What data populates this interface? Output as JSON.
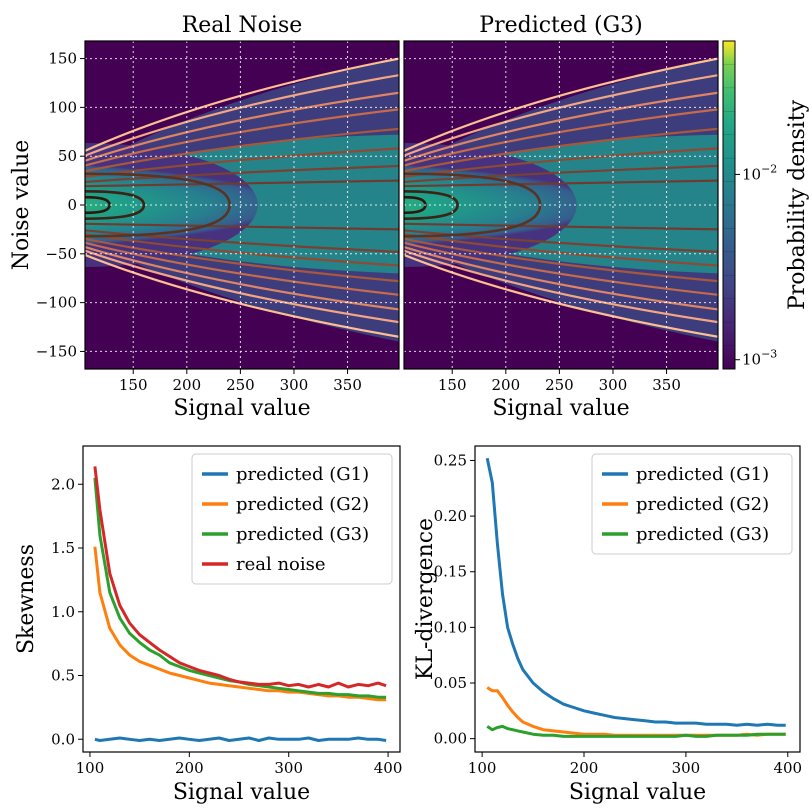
{
  "chart_data": [
    {
      "type": "heatmap",
      "title": "Real Noise",
      "xlabel": "Signal value",
      "ylabel": "Noise value",
      "xlim": [
        105,
        398
      ],
      "ylim": [
        -168,
        168
      ],
      "xticks": [
        150,
        200,
        250,
        300,
        350
      ],
      "yticks": [
        -150,
        -100,
        -50,
        0,
        50,
        100,
        150
      ],
      "grid": true,
      "contour_outer_ends_y_at_x398": [
        150,
        133,
        115,
        98,
        78,
        58,
        40,
        25,
        -25,
        -48,
        -62,
        -78,
        -92,
        -107,
        -120,
        -135
      ],
      "contour_inner_x_extent": [
        128,
        160,
        240
      ]
    },
    {
      "type": "heatmap",
      "title": "Predicted (G3)",
      "xlabel": "Signal value",
      "ylabel": "",
      "xlim": [
        105,
        398
      ],
      "ylim": [
        -168,
        168
      ],
      "xticks": [
        150,
        200,
        250,
        300,
        350
      ],
      "yticks": [],
      "grid": true,
      "colorbar": {
        "label": "Probability density",
        "scale": "log",
        "ticks": [
          "10^-2",
          "10^-3"
        ],
        "tick_values": [
          0.01,
          0.001
        ]
      },
      "contour_outer_ends_y_at_x398": [
        150,
        133,
        115,
        98,
        78,
        58,
        40,
        25,
        -25,
        -48,
        -62,
        -78,
        -92,
        -107,
        -120,
        -135
      ],
      "contour_inner_x_extent": [
        125,
        155,
        232
      ]
    },
    {
      "type": "line",
      "xlabel": "Signal value",
      "ylabel": "Skewness",
      "xlim": [
        93,
        412
      ],
      "ylim": [
        -0.1,
        2.3
      ],
      "xticks": [
        100,
        200,
        300,
        400
      ],
      "yticks": [
        0.0,
        0.5,
        1.0,
        1.5,
        2.0
      ],
      "legend": "top-right",
      "series": [
        {
          "name": "predicted (G1)",
          "color": "#1f77b4",
          "x": [
            105,
            110,
            120,
            130,
            140,
            150,
            160,
            170,
            180,
            190,
            200,
            210,
            220,
            230,
            240,
            250,
            260,
            270,
            280,
            290,
            300,
            310,
            320,
            330,
            340,
            350,
            360,
            370,
            380,
            390,
            398
          ],
          "y": [
            0.0,
            -0.01,
            0.0,
            0.01,
            0.0,
            -0.01,
            0.0,
            -0.01,
            0.0,
            0.01,
            0.0,
            -0.01,
            0.0,
            0.01,
            -0.01,
            0.0,
            0.01,
            -0.01,
            0.01,
            0.0,
            0.0,
            0.0,
            0.01,
            -0.01,
            0.0,
            0.0,
            0.0,
            0.01,
            0.0,
            0.0,
            -0.01
          ]
        },
        {
          "name": "predicted (G2)",
          "color": "#ff7f0e",
          "x": [
            105,
            110,
            120,
            130,
            140,
            150,
            160,
            170,
            180,
            190,
            200,
            210,
            220,
            230,
            240,
            250,
            260,
            270,
            280,
            290,
            300,
            310,
            320,
            330,
            340,
            350,
            360,
            370,
            380,
            390,
            398
          ],
          "y": [
            1.51,
            1.15,
            0.87,
            0.74,
            0.66,
            0.61,
            0.58,
            0.55,
            0.52,
            0.5,
            0.48,
            0.46,
            0.44,
            0.43,
            0.42,
            0.41,
            0.4,
            0.39,
            0.38,
            0.38,
            0.37,
            0.37,
            0.36,
            0.35,
            0.34,
            0.34,
            0.33,
            0.33,
            0.32,
            0.31,
            0.31
          ]
        },
        {
          "name": "predicted (G3)",
          "color": "#2ca02c",
          "x": [
            105,
            110,
            120,
            130,
            140,
            150,
            160,
            170,
            180,
            190,
            200,
            210,
            220,
            230,
            240,
            250,
            260,
            270,
            280,
            290,
            300,
            310,
            320,
            330,
            340,
            350,
            360,
            370,
            380,
            390,
            398
          ],
          "y": [
            2.05,
            1.6,
            1.15,
            0.95,
            0.83,
            0.76,
            0.7,
            0.66,
            0.6,
            0.57,
            0.54,
            0.52,
            0.5,
            0.48,
            0.46,
            0.45,
            0.43,
            0.42,
            0.41,
            0.4,
            0.39,
            0.38,
            0.37,
            0.36,
            0.36,
            0.35,
            0.35,
            0.34,
            0.34,
            0.33,
            0.33
          ]
        },
        {
          "name": "real noise",
          "color": "#d62728",
          "x": [
            105,
            110,
            120,
            130,
            140,
            150,
            160,
            170,
            180,
            190,
            200,
            210,
            220,
            230,
            240,
            250,
            260,
            270,
            280,
            290,
            300,
            310,
            320,
            330,
            340,
            350,
            360,
            370,
            380,
            390,
            398
          ],
          "y": [
            2.14,
            1.8,
            1.3,
            1.05,
            0.91,
            0.82,
            0.76,
            0.7,
            0.65,
            0.6,
            0.57,
            0.54,
            0.52,
            0.5,
            0.47,
            0.45,
            0.44,
            0.43,
            0.43,
            0.44,
            0.42,
            0.43,
            0.41,
            0.43,
            0.41,
            0.44,
            0.41,
            0.43,
            0.42,
            0.44,
            0.42
          ]
        }
      ]
    },
    {
      "type": "line",
      "xlabel": "Signal value",
      "ylabel": "KL-divergence",
      "xlim": [
        93,
        412
      ],
      "ylim": [
        -0.012,
        0.263
      ],
      "xticks": [
        100,
        200,
        300,
        400
      ],
      "yticks": [
        0.0,
        0.05,
        0.1,
        0.15,
        0.2,
        0.25
      ],
      "legend": "top-right",
      "series": [
        {
          "name": "predicted (G1)",
          "color": "#1f77b4",
          "x": [
            105,
            110,
            115,
            120,
            125,
            130,
            135,
            140,
            150,
            160,
            170,
            180,
            190,
            200,
            210,
            220,
            230,
            240,
            250,
            260,
            270,
            280,
            290,
            300,
            310,
            320,
            330,
            340,
            350,
            360,
            370,
            380,
            390,
            398
          ],
          "y": [
            0.252,
            0.23,
            0.175,
            0.13,
            0.1,
            0.085,
            0.072,
            0.062,
            0.05,
            0.042,
            0.036,
            0.031,
            0.028,
            0.025,
            0.023,
            0.021,
            0.019,
            0.018,
            0.017,
            0.016,
            0.015,
            0.015,
            0.014,
            0.014,
            0.014,
            0.013,
            0.013,
            0.013,
            0.012,
            0.013,
            0.012,
            0.013,
            0.012,
            0.012
          ]
        },
        {
          "name": "predicted (G2)",
          "color": "#ff7f0e",
          "x": [
            105,
            110,
            115,
            120,
            125,
            130,
            135,
            140,
            150,
            160,
            170,
            180,
            190,
            200,
            210,
            220,
            230,
            240,
            250,
            260,
            270,
            280,
            290,
            300,
            310,
            320,
            330,
            340,
            350,
            360,
            370,
            380,
            390,
            398
          ],
          "y": [
            0.046,
            0.043,
            0.043,
            0.037,
            0.03,
            0.024,
            0.019,
            0.015,
            0.011,
            0.008,
            0.007,
            0.006,
            0.005,
            0.004,
            0.004,
            0.004,
            0.003,
            0.003,
            0.003,
            0.003,
            0.003,
            0.003,
            0.003,
            0.003,
            0.003,
            0.003,
            0.003,
            0.003,
            0.003,
            0.004,
            0.003,
            0.004,
            0.004,
            0.004
          ]
        },
        {
          "name": "predicted (G3)",
          "color": "#2ca02c",
          "x": [
            105,
            110,
            115,
            120,
            125,
            130,
            135,
            140,
            150,
            160,
            170,
            180,
            190,
            200,
            210,
            220,
            230,
            240,
            250,
            260,
            270,
            280,
            290,
            300,
            310,
            320,
            330,
            340,
            350,
            360,
            370,
            380,
            390,
            398
          ],
          "y": [
            0.011,
            0.008,
            0.01,
            0.011,
            0.009,
            0.008,
            0.007,
            0.006,
            0.004,
            0.003,
            0.003,
            0.002,
            0.002,
            0.002,
            0.002,
            0.002,
            0.002,
            0.002,
            0.002,
            0.002,
            0.002,
            0.002,
            0.002,
            0.003,
            0.002,
            0.002,
            0.003,
            0.003,
            0.003,
            0.003,
            0.004,
            0.004,
            0.004,
            0.004
          ]
        }
      ]
    }
  ]
}
